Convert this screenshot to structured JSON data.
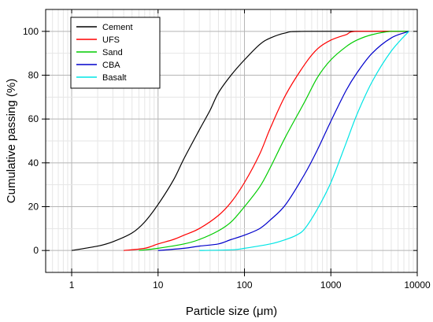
{
  "chart_data": {
    "type": "line",
    "title": "",
    "xlabel": "Particle size (μm)",
    "ylabel": "Cumulative passing (%)",
    "x_scale": "log",
    "xlim": [
      0.5,
      10000
    ],
    "ylim": [
      -10,
      110
    ],
    "x_ticks": [
      1,
      10,
      100,
      1000,
      10000
    ],
    "x_tick_labels": [
      "1",
      "10",
      "100",
      "1000",
      "10000"
    ],
    "y_ticks": [
      0,
      20,
      40,
      60,
      80,
      100
    ],
    "y_tick_labels": [
      "0",
      "20",
      "40",
      "60",
      "80",
      "100"
    ],
    "grid": true,
    "legend_position": "top-left",
    "series": [
      {
        "name": "Cement",
        "color": "#000000",
        "points": [
          [
            1,
            0
          ],
          [
            2,
            2
          ],
          [
            3,
            4
          ],
          [
            5,
            8
          ],
          [
            7,
            13
          ],
          [
            10,
            21
          ],
          [
            15,
            32
          ],
          [
            20,
            42
          ],
          [
            30,
            55
          ],
          [
            40,
            64
          ],
          [
            50,
            72
          ],
          [
            70,
            80
          ],
          [
            100,
            87
          ],
          [
            150,
            94
          ],
          [
            200,
            97
          ],
          [
            300,
            99.3
          ],
          [
            500,
            100
          ],
          [
            8000,
            100
          ]
        ]
      },
      {
        "name": "UFS",
        "color": "#ff0000",
        "points": [
          [
            4,
            0
          ],
          [
            7,
            1
          ],
          [
            10,
            3
          ],
          [
            15,
            5
          ],
          [
            20,
            7
          ],
          [
            30,
            10
          ],
          [
            50,
            16
          ],
          [
            70,
            22
          ],
          [
            100,
            31
          ],
          [
            150,
            44
          ],
          [
            200,
            56
          ],
          [
            300,
            71
          ],
          [
            500,
            85
          ],
          [
            700,
            92
          ],
          [
            1000,
            96
          ],
          [
            1500,
            98.5
          ],
          [
            2000,
            100
          ],
          [
            8000,
            100
          ]
        ]
      },
      {
        "name": "Sand",
        "color": "#00cc00",
        "points": [
          [
            6,
            0
          ],
          [
            10,
            1
          ],
          [
            20,
            3
          ],
          [
            30,
            5
          ],
          [
            50,
            9
          ],
          [
            70,
            13
          ],
          [
            100,
            20
          ],
          [
            150,
            29
          ],
          [
            200,
            38
          ],
          [
            300,
            52
          ],
          [
            500,
            68
          ],
          [
            700,
            79
          ],
          [
            1000,
            87
          ],
          [
            1500,
            93
          ],
          [
            2000,
            96
          ],
          [
            3000,
            98.5
          ],
          [
            5000,
            100
          ],
          [
            8000,
            100
          ]
        ]
      },
      {
        "name": "CBA",
        "color": "#0000cc",
        "points": [
          [
            10,
            0
          ],
          [
            20,
            1
          ],
          [
            30,
            2
          ],
          [
            50,
            3
          ],
          [
            70,
            5
          ],
          [
            100,
            7
          ],
          [
            150,
            10
          ],
          [
            200,
            14
          ],
          [
            300,
            21
          ],
          [
            500,
            35
          ],
          [
            700,
            46
          ],
          [
            1000,
            59
          ],
          [
            1500,
            73
          ],
          [
            2000,
            81
          ],
          [
            3000,
            90
          ],
          [
            5000,
            97
          ],
          [
            8000,
            100
          ]
        ]
      },
      {
        "name": "Basalt",
        "color": "#00e5e5",
        "points": [
          [
            30,
            0
          ],
          [
            70,
            0.3
          ],
          [
            100,
            1
          ],
          [
            200,
            3
          ],
          [
            300,
            5
          ],
          [
            400,
            7
          ],
          [
            500,
            10
          ],
          [
            700,
            19
          ],
          [
            1000,
            31
          ],
          [
            1500,
            49
          ],
          [
            2000,
            62
          ],
          [
            3000,
            77
          ],
          [
            5000,
            91
          ],
          [
            8000,
            100
          ]
        ]
      }
    ]
  }
}
